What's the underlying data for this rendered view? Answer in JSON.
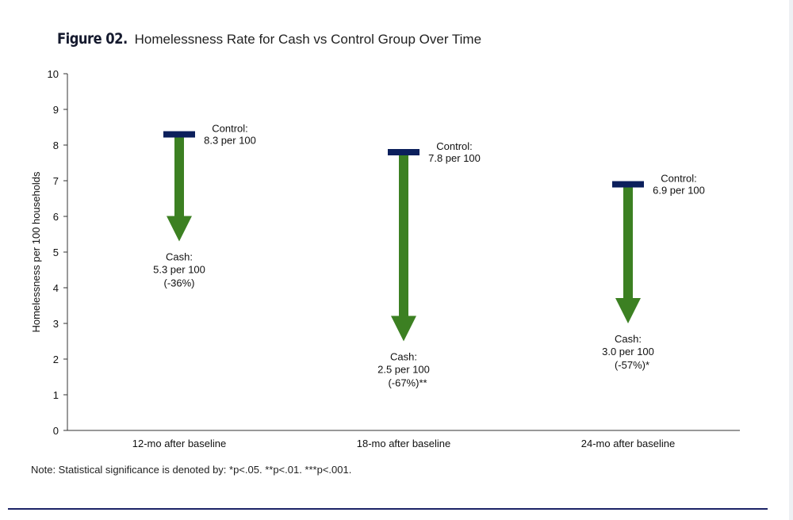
{
  "title": {
    "figure_label": "Figure 02.",
    "text": "Homelessness Rate for Cash vs Control Group Over Time"
  },
  "note": "Note: Statistical significance is denoted by: *p<.05. **p<.01. ***p<.001.",
  "colors": {
    "control_marker": "#0b1f5c",
    "arrow": "#3c8022",
    "axis": "#333333",
    "bottom_rule": "#1c2366"
  },
  "chart_data": {
    "type": "arrow",
    "title": "Homelessness Rate for Cash vs Control Group Over Time",
    "xlabel": "",
    "ylabel": "Homelessness per 100 households",
    "ylim": [
      0,
      10
    ],
    "yticks": [
      0,
      1,
      2,
      3,
      4,
      5,
      6,
      7,
      8,
      9,
      10
    ],
    "grid": false,
    "categories": [
      "12-mo after baseline",
      "18-mo after baseline",
      "24-mo after baseline"
    ],
    "series": [
      {
        "name": "Control",
        "values": [
          8.3,
          7.8,
          6.9
        ]
      },
      {
        "name": "Cash",
        "values": [
          5.3,
          2.5,
          3.0
        ]
      }
    ],
    "control_labels": [
      [
        "Control:",
        "8.3 per 100"
      ],
      [
        "Control:",
        "7.8 per 100"
      ],
      [
        "Control:",
        "6.9 per 100"
      ]
    ],
    "cash_labels": [
      [
        "Cash:",
        "5.3 per 100",
        "(-36%)"
      ],
      [
        "Cash:",
        "2.5 per 100",
        "(-67%)**"
      ],
      [
        "Cash:",
        "3.0 per 100",
        "(-57%)*"
      ]
    ]
  }
}
